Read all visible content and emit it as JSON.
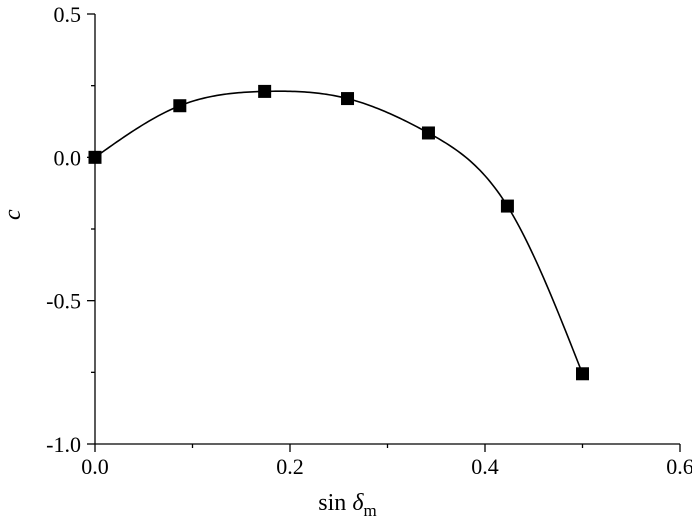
{
  "chart_data": {
    "type": "scatter",
    "title": "",
    "xlabel": {
      "prefix": "sin ",
      "symbol": "δ",
      "subscript": "m"
    },
    "ylabel": "c",
    "xlim": [
      0.0,
      0.6
    ],
    "ylim": [
      -1.0,
      0.5
    ],
    "xticks": [
      0.0,
      0.2,
      0.4,
      0.6
    ],
    "xtick_labels": [
      "0.0",
      "0.2",
      "0.4",
      "0.6"
    ],
    "yticks": [
      -1.0,
      -0.5,
      0.0,
      0.5
    ],
    "ytick_labels": [
      "-1.0",
      "-0.5",
      "0.0",
      "0.5"
    ],
    "grid": false,
    "legend": "none",
    "series": [
      {
        "marker": "square",
        "fit_curve": true,
        "x": [
          0.0,
          0.087,
          0.174,
          0.259,
          0.342,
          0.423,
          0.5
        ],
        "y": [
          0.0,
          0.18,
          0.23,
          0.205,
          0.085,
          -0.17,
          -0.755
        ]
      }
    ],
    "colors": {
      "marker": "#000000",
      "line": "#000000",
      "axes": "#000000"
    }
  }
}
